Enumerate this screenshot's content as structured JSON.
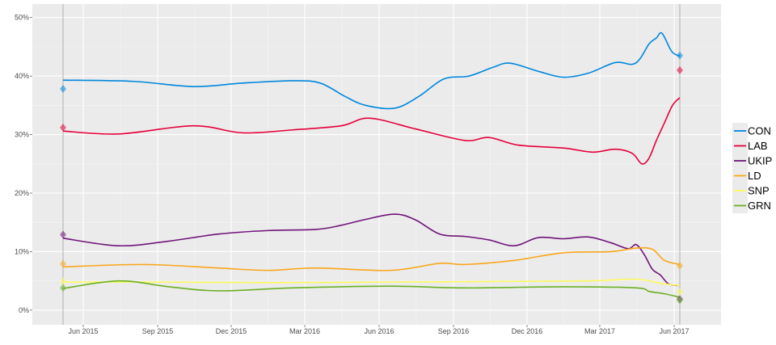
{
  "chart_data": {
    "type": "line",
    "title": "",
    "xlabel": "",
    "ylabel": "",
    "xlim": [
      "2015-03-30",
      "2017-07-29"
    ],
    "ylim": [
      -2.5,
      52.3
    ],
    "grid": true,
    "legend_position": "right",
    "y_ticks": [
      0,
      10,
      20,
      30,
      40,
      50
    ],
    "y_tick_labels": [
      "0%",
      "10%",
      "20%",
      "30%",
      "40%",
      "50%"
    ],
    "x_ticks": [
      "2015-06-01",
      "2015-09-01",
      "2015-12-01",
      "2016-03-01",
      "2016-06-01",
      "2016-09-01",
      "2016-12-01",
      "2017-03-01",
      "2017-06-01"
    ],
    "x_tick_labels": [
      "Jun 2015",
      "Sep 2015",
      "Dec 2015",
      "Mar 2016",
      "Jun 2016",
      "Sep 2016",
      "Dec 2016",
      "Mar 2017",
      "Jun 2017"
    ],
    "vertical_lines": [
      "2015-05-07",
      "2017-06-08"
    ],
    "series": [
      {
        "name": "CON",
        "color": "#0087DC",
        "x": [
          "2015-05-07",
          "2015-08-01",
          "2015-10-15",
          "2015-12-15",
          "2016-02-15",
          "2016-03-20",
          "2016-04-20",
          "2016-05-15",
          "2016-06-20",
          "2016-07-20",
          "2016-08-20",
          "2016-09-20",
          "2016-10-20",
          "2016-11-10",
          "2016-12-15",
          "2017-01-15",
          "2017-02-15",
          "2017-03-20",
          "2017-04-10",
          "2017-04-20",
          "2017-05-01",
          "2017-05-10",
          "2017-05-17",
          "2017-05-29",
          "2017-06-08"
        ],
        "y": [
          39.3,
          39.1,
          38.2,
          38.8,
          39.2,
          38.8,
          36.5,
          35.0,
          34.5,
          36.5,
          39.5,
          40.0,
          41.5,
          42.2,
          40.8,
          39.8,
          40.5,
          42.3,
          42.0,
          43.0,
          45.5,
          46.5,
          47.3,
          44.2,
          43.4
        ],
        "result": [
          37.8,
          43.5
        ]
      },
      {
        "name": "LAB",
        "color": "#E4003B",
        "x": [
          "2015-05-07",
          "2015-07-15",
          "2015-10-15",
          "2015-12-15",
          "2016-02-15",
          "2016-04-15",
          "2016-05-20",
          "2016-07-15",
          "2016-09-15",
          "2016-10-15",
          "2016-11-20",
          "2017-01-15",
          "2017-02-20",
          "2017-03-20",
          "2017-04-10",
          "2017-04-22",
          "2017-05-01",
          "2017-05-10",
          "2017-05-20",
          "2017-05-30",
          "2017-06-08"
        ],
        "y": [
          30.6,
          30.1,
          31.5,
          30.3,
          30.8,
          31.5,
          32.8,
          31.0,
          29.0,
          29.5,
          28.2,
          27.7,
          27.0,
          27.5,
          26.8,
          25.0,
          26.0,
          29.0,
          32.0,
          35.0,
          36.3
        ],
        "result": [
          31.2,
          41.0
        ]
      },
      {
        "name": "UKIP",
        "color": "#70147A",
        "x": [
          "2015-05-07",
          "2015-07-15",
          "2015-09-15",
          "2015-11-15",
          "2016-01-15",
          "2016-03-15",
          "2016-04-15",
          "2016-05-15",
          "2016-06-20",
          "2016-07-15",
          "2016-08-15",
          "2016-09-15",
          "2016-10-15",
          "2016-11-15",
          "2016-12-15",
          "2017-01-15",
          "2017-02-15",
          "2017-03-15",
          "2017-04-05",
          "2017-04-15",
          "2017-04-25",
          "2017-05-05",
          "2017-05-15",
          "2017-05-25",
          "2017-06-08"
        ],
        "y": [
          12.3,
          11.0,
          11.8,
          13.0,
          13.6,
          13.8,
          14.5,
          15.5,
          16.4,
          15.5,
          13.0,
          12.6,
          12.0,
          11.0,
          12.4,
          12.2,
          12.5,
          11.5,
          10.5,
          11.2,
          9.5,
          7.0,
          6.0,
          4.5,
          4.2
        ],
        "result": [
          12.9,
          1.9
        ]
      },
      {
        "name": "LD",
        "color": "#FAA61A",
        "x": [
          "2015-05-07",
          "2015-08-15",
          "2015-11-15",
          "2016-01-15",
          "2016-03-15",
          "2016-06-15",
          "2016-08-15",
          "2016-09-15",
          "2016-11-15",
          "2017-01-15",
          "2017-03-15",
          "2017-04-15",
          "2017-05-05",
          "2017-05-20",
          "2017-06-08"
        ],
        "y": [
          7.4,
          7.8,
          7.2,
          6.8,
          7.2,
          6.8,
          8.0,
          7.8,
          8.5,
          9.8,
          10.0,
          10.6,
          10.4,
          8.5,
          7.8
        ],
        "result": [
          7.9,
          7.6
        ]
      },
      {
        "name": "SNP",
        "color": "#FFF95D",
        "x": [
          "2015-05-07",
          "2015-09-15",
          "2016-01-15",
          "2016-06-15",
          "2016-10-15",
          "2017-02-15",
          "2017-04-15",
          "2017-05-15",
          "2017-06-08"
        ],
        "y": [
          4.8,
          4.8,
          4.7,
          4.8,
          4.9,
          5.0,
          5.3,
          4.6,
          4.2
        ],
        "result": [
          4.9,
          3.1
        ]
      },
      {
        "name": "GRN",
        "color": "#6AB023",
        "x": [
          "2015-05-07",
          "2015-07-15",
          "2015-09-15",
          "2015-11-15",
          "2016-02-15",
          "2016-06-15",
          "2016-09-15",
          "2017-01-15",
          "2017-04-15",
          "2017-05-01",
          "2017-05-20",
          "2017-06-08"
        ],
        "y": [
          3.7,
          5.0,
          4.0,
          3.3,
          3.8,
          4.1,
          3.8,
          4.0,
          3.8,
          3.2,
          2.8,
          2.2
        ],
        "result": [
          3.8,
          1.7
        ]
      }
    ]
  }
}
